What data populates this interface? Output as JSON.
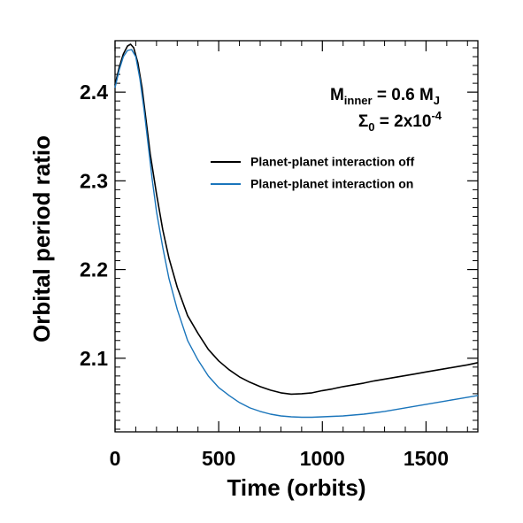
{
  "chart_data": {
    "type": "line",
    "xlabel": "Time (orbits)",
    "ylabel": "Orbital period ratio",
    "xlim": [
      0,
      1750
    ],
    "ylim": [
      2.017,
      2.458
    ],
    "x_ticks": [
      0,
      500,
      1000,
      1500
    ],
    "x_tick_labels": [
      "0",
      "500",
      "1000",
      "1500"
    ],
    "y_ticks": [
      2.1,
      2.2,
      2.3,
      2.4
    ],
    "y_tick_labels": [
      "2.1",
      "2.2",
      "2.3",
      "2.4"
    ],
    "annotation": {
      "m_symbol": "M",
      "m_sub": "inner",
      "m_value": " = 0.6 M",
      "m_unit_sub": "J",
      "s_symbol": "Σ",
      "s_sub": "0",
      "s_value": " = 2x10",
      "s_exp": "-4"
    },
    "legend": {
      "placement": "upper-right"
    },
    "series": [
      {
        "name": "Planet-planet interaction off",
        "color": "#000000",
        "x": [
          0,
          20,
          40,
          60,
          75,
          90,
          110,
          130,
          150,
          170,
          200,
          230,
          260,
          300,
          350,
          400,
          450,
          500,
          550,
          600,
          650,
          700,
          750,
          800,
          850,
          900,
          950,
          1000,
          1050,
          1100,
          1150,
          1200,
          1250,
          1300,
          1350,
          1400,
          1450,
          1500,
          1550,
          1600,
          1650,
          1700,
          1750
        ],
        "y": [
          2.408,
          2.428,
          2.443,
          2.452,
          2.454,
          2.45,
          2.433,
          2.405,
          2.368,
          2.33,
          2.285,
          2.245,
          2.213,
          2.18,
          2.148,
          2.128,
          2.11,
          2.097,
          2.087,
          2.079,
          2.073,
          2.068,
          2.064,
          2.061,
          2.0595,
          2.06,
          2.061,
          2.0635,
          2.0655,
          2.068,
          2.07,
          2.072,
          2.0745,
          2.0765,
          2.0785,
          2.0805,
          2.0825,
          2.0845,
          2.0865,
          2.0885,
          2.0905,
          2.0925,
          2.095
        ]
      },
      {
        "name": "Planet-planet interaction on",
        "color": "#1a75bb",
        "x": [
          0,
          20,
          40,
          60,
          80,
          100,
          120,
          140,
          160,
          180,
          200,
          230,
          260,
          300,
          350,
          400,
          450,
          500,
          550,
          600,
          650,
          700,
          750,
          800,
          850,
          900,
          950,
          1000,
          1050,
          1100,
          1150,
          1200,
          1250,
          1300,
          1350,
          1400,
          1450,
          1500,
          1550,
          1600,
          1650,
          1700,
          1750
        ],
        "y": [
          2.405,
          2.425,
          2.44,
          2.447,
          2.448,
          2.44,
          2.415,
          2.38,
          2.34,
          2.3,
          2.265,
          2.225,
          2.19,
          2.155,
          2.12,
          2.098,
          2.08,
          2.067,
          2.058,
          2.05,
          2.044,
          2.04,
          2.037,
          2.035,
          2.034,
          2.0335,
          2.0335,
          2.034,
          2.0345,
          2.035,
          2.036,
          2.037,
          2.0385,
          2.04,
          2.042,
          2.044,
          2.046,
          2.048,
          2.05,
          2.052,
          2.054,
          2.056,
          2.058
        ]
      }
    ]
  }
}
